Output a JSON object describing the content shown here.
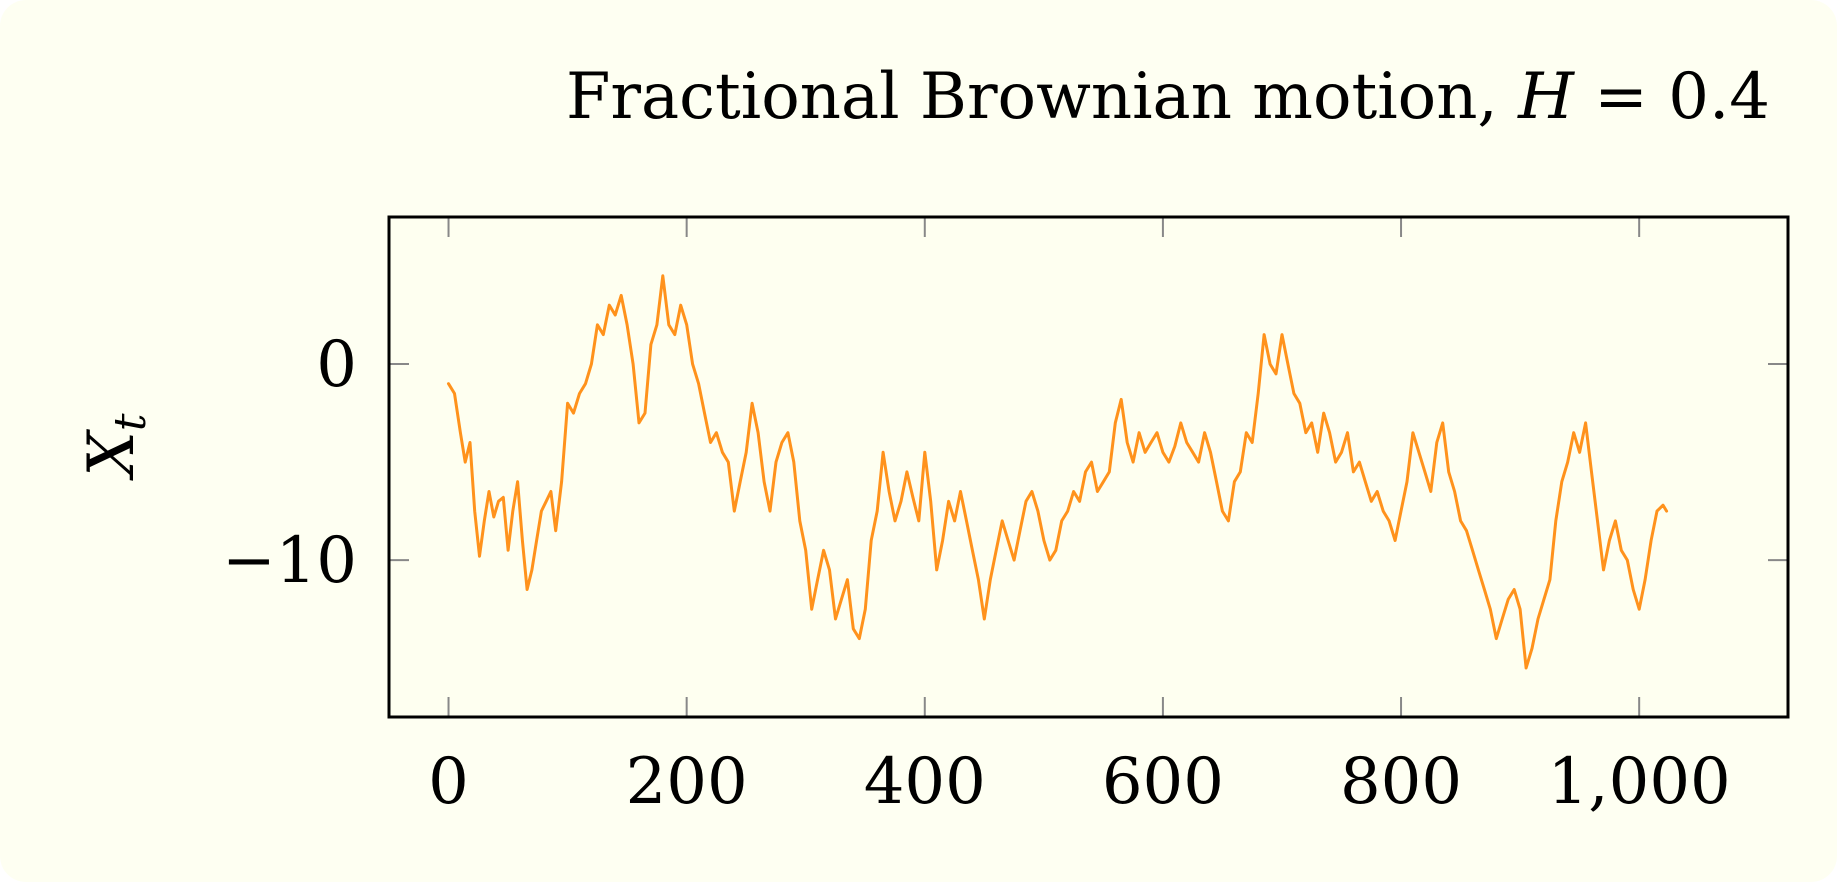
{
  "colors": {
    "background": "#fefff2",
    "plot_background": "#fefff0",
    "series": "#ff921c",
    "frame": "#000000",
    "tick": "#888888"
  },
  "chart_data": {
    "type": "line",
    "title_text": "Fractional Brownian motion, ",
    "title_math_var": "H",
    "title_math_rest": " = 0.4",
    "ylabel_var": "X",
    "ylabel_sub": "t",
    "xlabel": "",
    "xlim": [
      -50,
      1125
    ],
    "ylim": [
      -18,
      7.5
    ],
    "x_ticks": [
      0,
      200,
      400,
      600,
      800,
      1000
    ],
    "x_tick_labels": [
      "0",
      "200",
      "400",
      "600",
      "800",
      "1,000"
    ],
    "y_ticks": [
      0,
      -10
    ],
    "y_tick_labels": [
      "0",
      "−10"
    ],
    "grid": false,
    "series": [
      {
        "x": [
          0,
          5,
          10,
          14,
          18,
          22,
          26,
          30,
          34,
          38,
          42,
          46,
          50,
          54,
          58,
          62,
          66,
          70,
          74,
          78,
          82,
          86,
          90,
          95,
          100,
          105,
          110,
          115,
          120,
          125,
          130,
          135,
          140,
          145,
          150,
          155,
          160,
          165,
          170,
          175,
          180,
          185,
          190,
          195,
          200,
          205,
          210,
          215,
          220,
          225,
          230,
          235,
          240,
          245,
          250,
          255,
          260,
          265,
          270,
          275,
          280,
          285,
          290,
          295,
          300,
          305,
          310,
          315,
          320,
          325,
          330,
          335,
          340,
          345,
          350,
          355,
          360,
          365,
          370,
          375,
          380,
          385,
          390,
          395,
          400,
          405,
          410,
          415,
          420,
          425,
          430,
          435,
          440,
          445,
          450,
          455,
          460,
          465,
          470,
          475,
          480,
          485,
          490,
          495,
          500,
          505,
          510,
          515,
          520,
          525,
          530,
          535,
          540,
          545,
          550,
          555,
          560,
          565,
          570,
          575,
          580,
          585,
          590,
          595,
          600,
          605,
          610,
          615,
          620,
          625,
          630,
          635,
          640,
          645,
          650,
          655,
          660,
          665,
          670,
          675,
          680,
          685,
          690,
          695,
          700,
          705,
          710,
          715,
          720,
          725,
          730,
          735,
          740,
          745,
          750,
          755,
          760,
          765,
          770,
          775,
          780,
          785,
          790,
          795,
          800,
          805,
          810,
          815,
          820,
          825,
          830,
          835,
          840,
          845,
          850,
          855,
          860,
          865,
          870,
          875,
          880,
          885,
          890,
          895,
          900,
          905,
          910,
          915,
          920,
          925,
          930,
          935,
          940,
          945,
          950,
          955,
          960,
          965,
          970,
          975,
          980,
          985,
          990,
          995,
          1000,
          1005,
          1010,
          1015,
          1020,
          1023
        ],
        "y": [
          -1,
          -1.5,
          -3.5,
          -5,
          -4,
          -7.5,
          -9.8,
          -8,
          -6.5,
          -7.8,
          -7,
          -6.8,
          -9.5,
          -7.5,
          -6,
          -9,
          -11.5,
          -10.5,
          -9,
          -7.5,
          -7,
          -6.5,
          -8.5,
          -6,
          -2,
          -2.5,
          -1.5,
          -1,
          0,
          2,
          1.5,
          3,
          2.5,
          3.5,
          2,
          0,
          -3,
          -2.5,
          1,
          2,
          4.5,
          2,
          1.5,
          3,
          2,
          0,
          -1,
          -2.5,
          -4,
          -3.5,
          -4.5,
          -5,
          -7.5,
          -6,
          -4.5,
          -2,
          -3.5,
          -6,
          -7.5,
          -5,
          -4,
          -3.5,
          -5,
          -8,
          -9.5,
          -12.5,
          -11,
          -9.5,
          -10.5,
          -13,
          -12,
          -11,
          -13.5,
          -14,
          -12.5,
          -9,
          -7.5,
          -4.5,
          -6.5,
          -8,
          -7,
          -5.5,
          -6.8,
          -8,
          -4.5,
          -7,
          -10.5,
          -9,
          -7,
          -8,
          -6.5,
          -8,
          -9.5,
          -11,
          -13,
          -11,
          -9.5,
          -8,
          -9,
          -10,
          -8.5,
          -7,
          -6.5,
          -7.5,
          -9,
          -10,
          -9.5,
          -8,
          -7.5,
          -6.5,
          -7,
          -5.5,
          -5,
          -6.5,
          -6,
          -5.5,
          -3,
          -1.8,
          -4,
          -5,
          -3.5,
          -4.5,
          -4,
          -3.5,
          -4.5,
          -5,
          -4.2,
          -3,
          -4,
          -4.5,
          -5,
          -3.5,
          -4.5,
          -6,
          -7.5,
          -8,
          -6,
          -5.5,
          -3.5,
          -4,
          -1.5,
          1.5,
          0,
          -0.5,
          1.5,
          0,
          -1.5,
          -2,
          -3.5,
          -3,
          -4.5,
          -2.5,
          -3.5,
          -5,
          -4.5,
          -3.5,
          -5.5,
          -5,
          -6,
          -7,
          -6.5,
          -7.5,
          -8,
          -9,
          -7.5,
          -6,
          -3.5,
          -4.5,
          -5.5,
          -6.5,
          -4,
          -3,
          -5.5,
          -6.5,
          -8,
          -8.5,
          -9.5,
          -10.5,
          -11.5,
          -12.5,
          -14,
          -13,
          -12,
          -11.5,
          -12.5,
          -15.5,
          -14.5,
          -13,
          -12,
          -11,
          -8,
          -6,
          -5,
          -3.5,
          -4.5,
          -3,
          -5.5,
          -8,
          -10.5,
          -9,
          -8,
          -9.5,
          -10,
          -11.5,
          -12.5,
          -11,
          -9,
          -7.5,
          -7.2,
          -7.5
        ]
      }
    ]
  }
}
